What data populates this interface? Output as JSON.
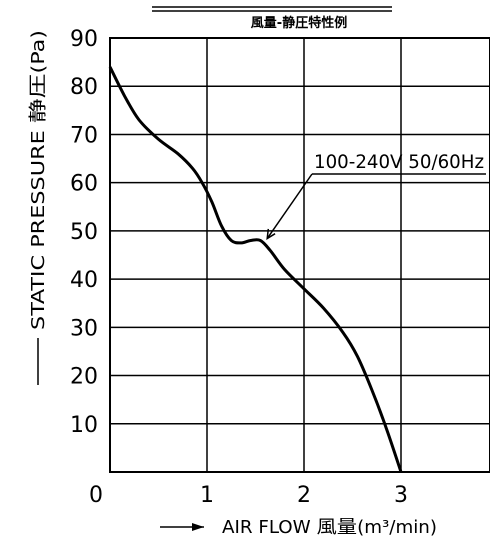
{
  "chart_data": {
    "type": "line",
    "title": "風量-静圧特性例",
    "xlabel": "AIR FLOW 風量(m³/min)",
    "ylabel": "STATIC PRESSURE 静圧(Pa)",
    "xlim": [
      0,
      3.9
    ],
    "ylim": [
      0,
      90
    ],
    "x_ticks": [
      "0",
      "1",
      "2",
      "3"
    ],
    "y_ticks": [
      "10",
      "20",
      "30",
      "40",
      "50",
      "60",
      "70",
      "80",
      "90"
    ],
    "grid": true,
    "series": [
      {
        "name": "100-240V 50/60Hz",
        "x": [
          0,
          0.15,
          0.3,
          0.5,
          0.7,
          0.85,
          0.95,
          1.05,
          1.15,
          1.25,
          1.35,
          1.45,
          1.55,
          1.65,
          1.8,
          2.0,
          2.2,
          2.4,
          2.55,
          2.7,
          2.85,
          3.0
        ],
        "y": [
          84,
          78,
          73,
          69,
          66,
          63,
          60,
          56,
          51,
          48,
          47.5,
          48,
          48,
          46,
          42,
          38,
          34,
          29,
          24,
          17,
          9,
          0
        ]
      }
    ],
    "annotation": {
      "text": "100-240V 50/60Hz",
      "x": 1.6,
      "y": 48
    }
  }
}
